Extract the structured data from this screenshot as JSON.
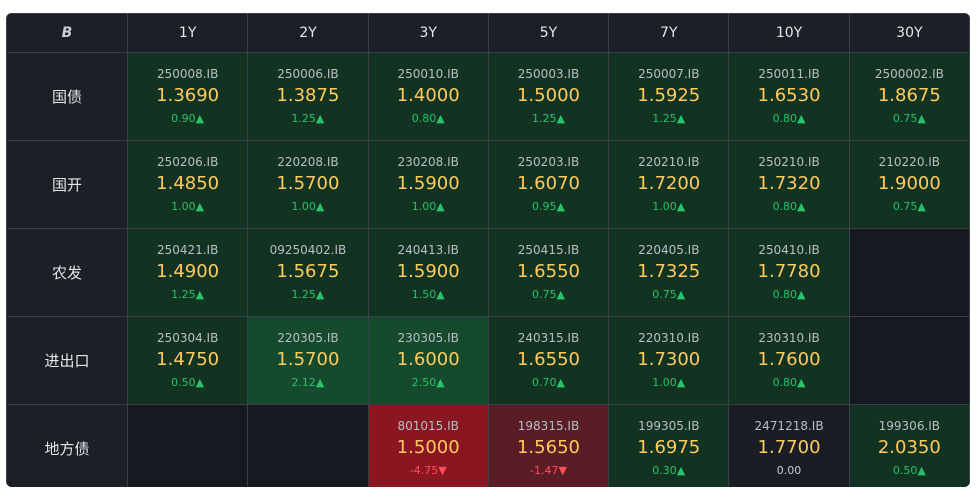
{
  "header": {
    "logo": "B",
    "columns": [
      "1Y",
      "2Y",
      "3Y",
      "5Y",
      "7Y",
      "10Y",
      "30Y"
    ]
  },
  "rows": [
    {
      "label": "国债",
      "cells": [
        {
          "code": "250008.IB",
          "rate": "1.3690",
          "change": "0.90▲",
          "state": "up"
        },
        {
          "code": "250006.IB",
          "rate": "1.3875",
          "change": "1.25▲",
          "state": "up"
        },
        {
          "code": "250010.IB",
          "rate": "1.4000",
          "change": "0.80▲",
          "state": "up"
        },
        {
          "code": "250003.IB",
          "rate": "1.5000",
          "change": "1.25▲",
          "state": "up"
        },
        {
          "code": "250007.IB",
          "rate": "1.5925",
          "change": "1.25▲",
          "state": "up"
        },
        {
          "code": "250011.IB",
          "rate": "1.6530",
          "change": "0.80▲",
          "state": "up"
        },
        {
          "code": "2500002.IB",
          "rate": "1.8675",
          "change": "0.75▲",
          "state": "up"
        }
      ]
    },
    {
      "label": "国开",
      "cells": [
        {
          "code": "250206.IB",
          "rate": "1.4850",
          "change": "1.00▲",
          "state": "up"
        },
        {
          "code": "220208.IB",
          "rate": "1.5700",
          "change": "1.00▲",
          "state": "up"
        },
        {
          "code": "230208.IB",
          "rate": "1.5900",
          "change": "1.00▲",
          "state": "up"
        },
        {
          "code": "250203.IB",
          "rate": "1.6070",
          "change": "0.95▲",
          "state": "up"
        },
        {
          "code": "220210.IB",
          "rate": "1.7200",
          "change": "1.00▲",
          "state": "up"
        },
        {
          "code": "250210.IB",
          "rate": "1.7320",
          "change": "0.80▲",
          "state": "up"
        },
        {
          "code": "210220.IB",
          "rate": "1.9000",
          "change": "0.75▲",
          "state": "up"
        }
      ]
    },
    {
      "label": "农发",
      "cells": [
        {
          "code": "250421.IB",
          "rate": "1.4900",
          "change": "1.25▲",
          "state": "up"
        },
        {
          "code": "09250402.IB",
          "rate": "1.5675",
          "change": "1.25▲",
          "state": "up"
        },
        {
          "code": "240413.IB",
          "rate": "1.5900",
          "change": "1.50▲",
          "state": "up"
        },
        {
          "code": "250415.IB",
          "rate": "1.6550",
          "change": "0.75▲",
          "state": "up"
        },
        {
          "code": "220405.IB",
          "rate": "1.7325",
          "change": "0.75▲",
          "state": "up"
        },
        {
          "code": "250410.IB",
          "rate": "1.7780",
          "change": "0.80▲",
          "state": "up"
        },
        null
      ]
    },
    {
      "label": "进出口",
      "cells": [
        {
          "code": "250304.IB",
          "rate": "1.4750",
          "change": "0.50▲",
          "state": "up"
        },
        {
          "code": "220305.IB",
          "rate": "1.5700",
          "change": "2.12▲",
          "state": "uphi"
        },
        {
          "code": "230305.IB",
          "rate": "1.6000",
          "change": "2.50▲",
          "state": "uphi"
        },
        {
          "code": "240315.IB",
          "rate": "1.6550",
          "change": "0.70▲",
          "state": "up"
        },
        {
          "code": "220310.IB",
          "rate": "1.7300",
          "change": "1.00▲",
          "state": "up"
        },
        {
          "code": "230310.IB",
          "rate": "1.7600",
          "change": "0.80▲",
          "state": "up"
        },
        null
      ]
    },
    {
      "label": "地方债",
      "cells": [
        null,
        null,
        {
          "code": "801015.IB",
          "rate": "1.5000",
          "change": "-4.75▼",
          "state": "down1"
        },
        {
          "code": "198315.IB",
          "rate": "1.5650",
          "change": "-1.47▼",
          "state": "down2"
        },
        {
          "code": "199305.IB",
          "rate": "1.6975",
          "change": "0.30▲",
          "state": "up"
        },
        {
          "code": "2471218.IB",
          "rate": "1.7700",
          "change": "0.00",
          "state": "neu"
        },
        {
          "code": "199306.IB",
          "rate": "2.0350",
          "change": "0.50▲",
          "state": "up"
        }
      ]
    }
  ],
  "colors": {
    "up_bg": "#123322",
    "up_strong_bg": "#154a2c",
    "down_strong_bg": "#8a1622",
    "down_bg": "#5a1d25",
    "rate": "#ffcb5c",
    "pos": "#29c26b",
    "neg": "#ff4d5a"
  }
}
